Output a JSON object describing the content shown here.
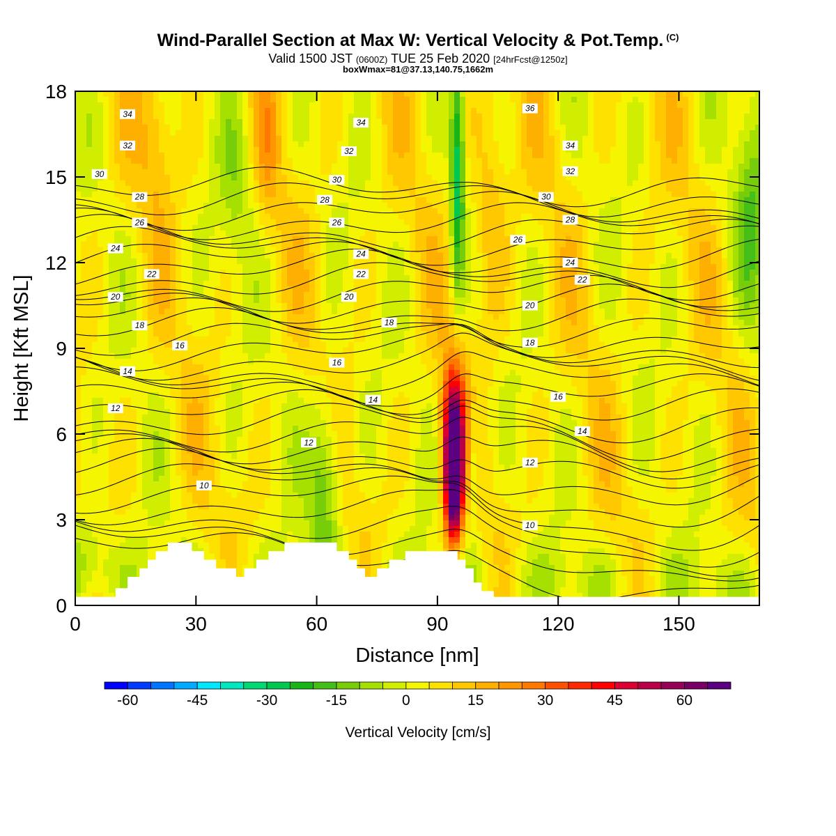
{
  "title": "Wind-Parallel Section at Max W: Vertical Velocity & Pot.Temp.",
  "title_mark": "(C)",
  "subtitle": {
    "prefix": "Valid 1500 JST",
    "utc": "(0600Z)",
    "date": "TUE 25 Feb 2020",
    "fcst": "[24hrFcst@1250z]"
  },
  "box_info": "boxWmax=81@37.13,140.75,1662m",
  "chart_data": {
    "type": "heatmap",
    "xlabel": "Distance [nm]",
    "ylabel": "Height [Kft MSL]",
    "xlim": [
      0,
      170
    ],
    "ylim": [
      0,
      18
    ],
    "x_ticks": [
      0,
      30,
      60,
      90,
      120,
      150
    ],
    "y_ticks": [
      0,
      3,
      6,
      9,
      12,
      15,
      18
    ],
    "grid": false,
    "colorbar": {
      "title": "Vertical Velocity [cm/s]",
      "placement": "bottom",
      "range": [
        -65,
        70
      ],
      "labels": [
        -60,
        -45,
        -30,
        -15,
        0,
        15,
        30,
        45,
        60
      ],
      "colors": [
        "#0000ff",
        "#0039ff",
        "#0073ff",
        "#00abff",
        "#00e6ff",
        "#00e6c0",
        "#00d873",
        "#00c850",
        "#18b418",
        "#46be18",
        "#78cd0a",
        "#a6e000",
        "#d2ee00",
        "#f5f500",
        "#ffe100",
        "#ffc800",
        "#ffaf00",
        "#ff9600",
        "#ff7800",
        "#ff5000",
        "#ff2800",
        "#ff0000",
        "#dc0032",
        "#b90046",
        "#960055",
        "#780064",
        "#5a0080"
      ]
    },
    "field_features": [
      {
        "x_center": 94,
        "z_range": [
          2,
          8
        ],
        "value": 81,
        "label": "max updraft"
      },
      {
        "x_center": 95,
        "z_range": [
          10,
          18
        ],
        "value": -30,
        "label": "downdraft column"
      },
      {
        "x_center": 62,
        "z_range": [
          2,
          8
        ],
        "value": -15
      },
      {
        "x_center": 40,
        "z_range": [
          12,
          18
        ],
        "value": -8
      },
      {
        "x_center": 20,
        "z_range": [
          15,
          18
        ],
        "value": 12
      },
      {
        "x_center": 103,
        "z_range": [
          11,
          17
        ],
        "value": 15
      },
      {
        "x_center": 168,
        "z_range": [
          10,
          17
        ],
        "value": -10
      },
      {
        "x_center": 2,
        "z_range": [
          0,
          3
        ],
        "value": -10
      }
    ],
    "terrain": {
      "x": [
        0,
        8,
        10,
        11,
        13,
        14,
        16,
        18,
        20,
        23,
        26,
        29,
        32,
        35,
        38,
        40,
        42,
        45,
        48,
        52,
        56,
        59,
        62,
        65,
        68,
        70,
        72,
        75,
        78,
        82,
        86,
        90,
        93,
        95,
        97,
        99,
        101,
        104,
        110,
        130,
        150,
        170
      ],
      "z": [
        0.3,
        0.3,
        0.6,
        0.6,
        1.0,
        1.0,
        1.3,
        1.6,
        1.9,
        2.2,
        2.2,
        1.9,
        1.6,
        1.3,
        1.3,
        1.0,
        1.3,
        1.6,
        1.9,
        2.2,
        2.2,
        2.2,
        2.2,
        1.9,
        1.6,
        1.3,
        1.0,
        1.3,
        1.6,
        1.9,
        1.9,
        1.9,
        1.9,
        1.6,
        1.3,
        0.8,
        0.5,
        0.3,
        0.3,
        0.3,
        0.3,
        0.3
      ]
    },
    "theta_contours": {
      "levels": [
        10,
        12,
        14,
        16,
        18,
        20,
        22,
        24,
        26,
        28,
        30,
        32,
        34,
        36
      ],
      "labeled_points": [
        {
          "level": 34,
          "x": 13,
          "z": 17.2
        },
        {
          "level": 32,
          "x": 13,
          "z": 16.1
        },
        {
          "level": 30,
          "x": 6,
          "z": 15.1
        },
        {
          "level": 28,
          "x": 16,
          "z": 14.3
        },
        {
          "level": 26,
          "x": 16,
          "z": 13.4
        },
        {
          "level": 24,
          "x": 10,
          "z": 12.5
        },
        {
          "level": 22,
          "x": 19,
          "z": 11.6
        },
        {
          "level": 20,
          "x": 10,
          "z": 10.8
        },
        {
          "level": 18,
          "x": 16,
          "z": 9.8
        },
        {
          "level": 16,
          "x": 26,
          "z": 9.1
        },
        {
          "level": 14,
          "x": 13,
          "z": 8.2
        },
        {
          "level": 12,
          "x": 10,
          "z": 6.9
        },
        {
          "level": 10,
          "x": 32,
          "z": 4.2
        },
        {
          "level": 34,
          "x": 71,
          "z": 16.9
        },
        {
          "level": 32,
          "x": 68,
          "z": 15.9
        },
        {
          "level": 30,
          "x": 65,
          "z": 14.9
        },
        {
          "level": 28,
          "x": 62,
          "z": 14.2
        },
        {
          "level": 26,
          "x": 65,
          "z": 13.4
        },
        {
          "level": 24,
          "x": 71,
          "z": 12.3
        },
        {
          "level": 22,
          "x": 71,
          "z": 11.6
        },
        {
          "level": 20,
          "x": 68,
          "z": 10.8
        },
        {
          "level": 18,
          "x": 78,
          "z": 9.9
        },
        {
          "level": 16,
          "x": 65,
          "z": 8.5
        },
        {
          "level": 14,
          "x": 74,
          "z": 7.2
        },
        {
          "level": 12,
          "x": 58,
          "z": 5.7
        },
        {
          "level": 36,
          "x": 113,
          "z": 17.4
        },
        {
          "level": 34,
          "x": 123,
          "z": 16.1
        },
        {
          "level": 32,
          "x": 123,
          "z": 15.2
        },
        {
          "level": 30,
          "x": 117,
          "z": 14.3
        },
        {
          "level": 28,
          "x": 123,
          "z": 13.5
        },
        {
          "level": 26,
          "x": 110,
          "z": 12.8
        },
        {
          "level": 24,
          "x": 123,
          "z": 12.0
        },
        {
          "level": 22,
          "x": 126,
          "z": 11.4
        },
        {
          "level": 20,
          "x": 113,
          "z": 10.5
        },
        {
          "level": 18,
          "x": 113,
          "z": 9.2
        },
        {
          "level": 16,
          "x": 120,
          "z": 7.3
        },
        {
          "level": 14,
          "x": 126,
          "z": 6.1
        },
        {
          "level": 12,
          "x": 113,
          "z": 5.0
        },
        {
          "level": 10,
          "x": 113,
          "z": 2.8
        }
      ]
    }
  }
}
